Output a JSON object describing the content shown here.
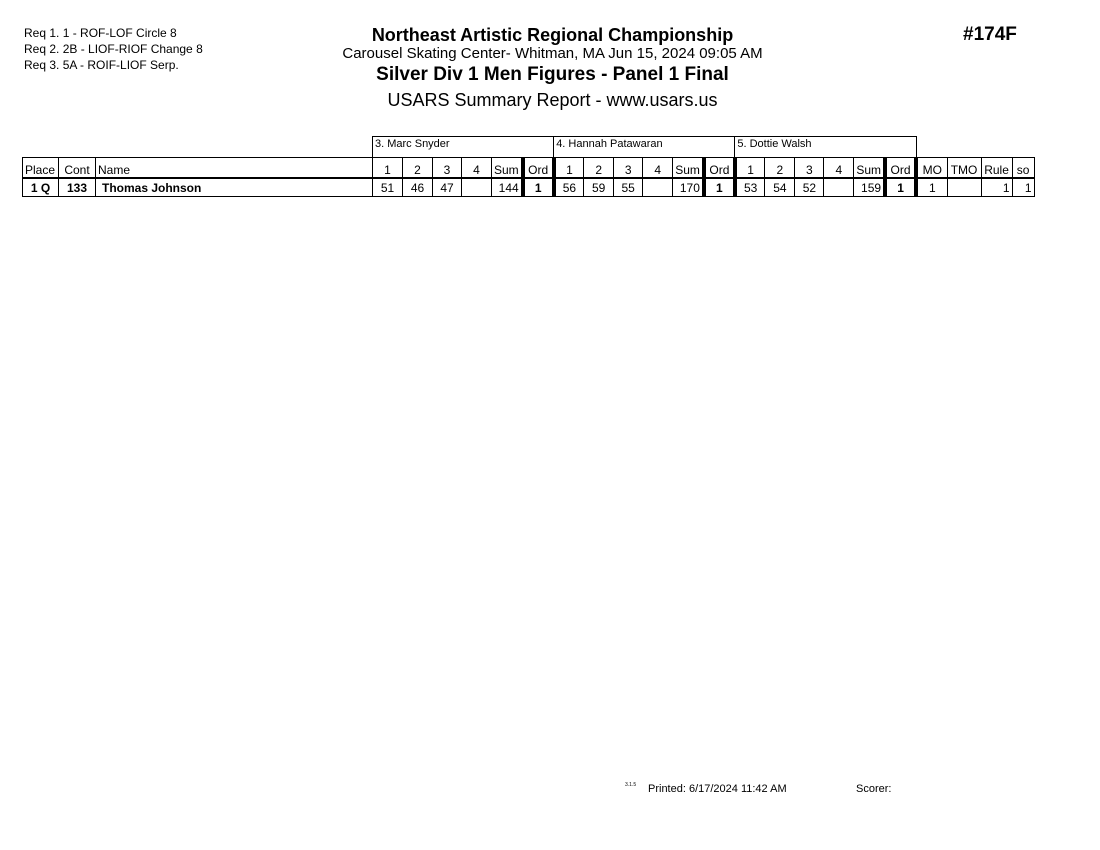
{
  "requirements": [
    "Req  1.  1 - ROF-LOF Circle 8",
    "Req  2.  2B - LIOF-RIOF Change 8",
    "Req  3.  5A - ROIF-LIOF Serp."
  ],
  "header": {
    "competition": "Northeast Artistic Regional Championship",
    "location": "Carousel Skating Center- Whitman, MA  Jun 15, 2024  09:05 AM",
    "event": "Silver Div 1 Men Figures - Panel 1 Final",
    "report": "USARS Summary Report - www.usars.us",
    "event_number": "#174F"
  },
  "judges": [
    "3.  Marc Snyder",
    "4.  Hannah Patawaran",
    "5.  Dottie Walsh"
  ],
  "columns": {
    "place": "Place",
    "cont": "Cont",
    "name": "Name",
    "scores": [
      "1",
      "2",
      "3",
      "4",
      "Sum",
      "Ord"
    ],
    "mo": "MO",
    "tmo": "TMO",
    "rule": "Rule",
    "so": "so"
  },
  "rows": [
    {
      "place": "1 Q",
      "cont": "133",
      "name": "Thomas Johnson",
      "judges": [
        {
          "s": [
            "51",
            "46",
            "47",
            ""
          ],
          "sum": "144",
          "ord": "1"
        },
        {
          "s": [
            "56",
            "59",
            "55",
            ""
          ],
          "sum": "170",
          "ord": "1"
        },
        {
          "s": [
            "53",
            "54",
            "52",
            ""
          ],
          "sum": "159",
          "ord": "1"
        }
      ],
      "mo": "1",
      "tmo": "",
      "rule": "1",
      "so": "1"
    }
  ],
  "footer": {
    "version": "3.1.5",
    "printed": "Printed:  6/17/2024  11:42 AM",
    "scorer": "Scorer:"
  }
}
